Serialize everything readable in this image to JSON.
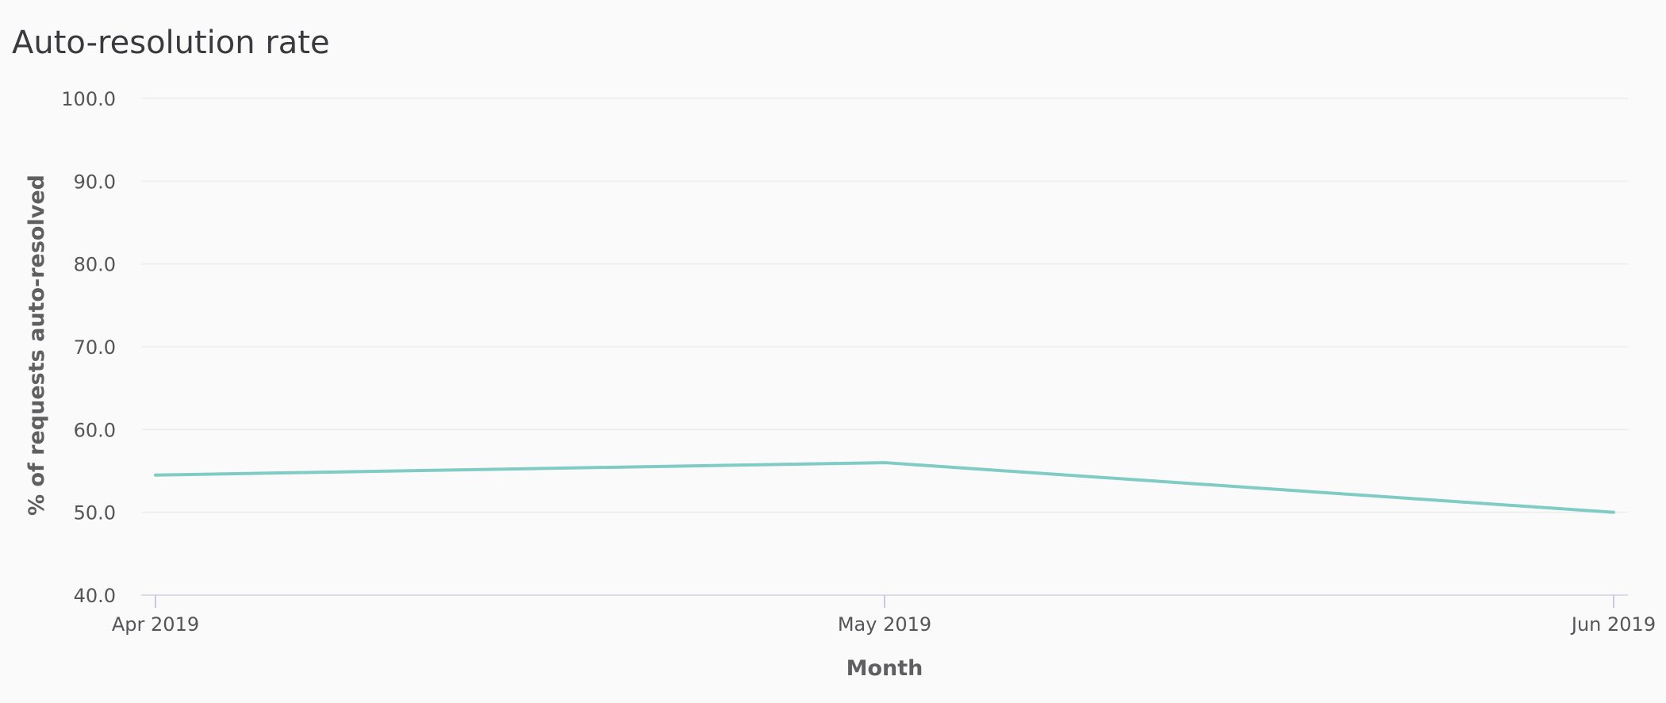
{
  "chart_data": {
    "type": "line",
    "title": "Auto-resolution rate",
    "xlabel": "Month",
    "ylabel": "% of requests auto-resolved",
    "categories": [
      "Apr 2019",
      "May 2019",
      "Jun 2019"
    ],
    "series": [
      {
        "values": [
          54.5,
          56.0,
          50.0
        ]
      }
    ],
    "ylim": [
      40,
      100
    ],
    "yticks": [
      40,
      50,
      60,
      70,
      80,
      90,
      100
    ],
    "ytick_labels": [
      "40.0",
      "50.0",
      "60.0",
      "70.0",
      "80.0",
      "90.0",
      "100.0"
    ],
    "grid": true,
    "legend": "none",
    "colors": {
      "line": "#80cbc4"
    }
  }
}
